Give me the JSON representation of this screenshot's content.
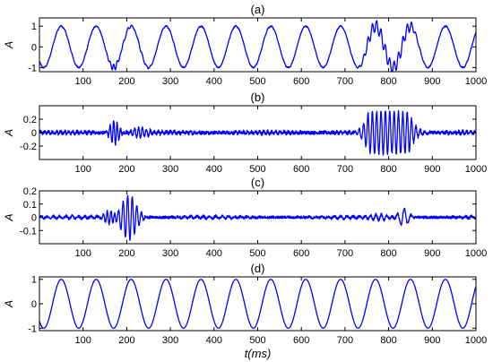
{
  "chart_data": [
    {
      "type": "line",
      "title": "(a)",
      "ylabel": "A",
      "xlim": [
        0,
        1000
      ],
      "ylim": [
        -1.2,
        1.4
      ],
      "xticks": [
        100,
        200,
        300,
        400,
        500,
        600,
        700,
        800,
        900,
        1000
      ],
      "yticks": [
        -1,
        0,
        1
      ],
      "series": [
        {
          "signal": "sine-period-80ms-amplitude-1-plus-noise-bursts",
          "color": "#0000ff"
        }
      ]
    },
    {
      "type": "line",
      "title": "(b)",
      "ylabel": "A",
      "xlim": [
        0,
        1000
      ],
      "ylim": [
        -0.4,
        0.4
      ],
      "xticks": [
        100,
        200,
        300,
        400,
        500,
        600,
        700,
        800,
        900,
        1000
      ],
      "yticks": [
        -0.2,
        0,
        0.2
      ],
      "series": [
        {
          "signal": "noise-with-bursts-near-180ms-and-800ms",
          "color": "#0000ff"
        }
      ]
    },
    {
      "type": "line",
      "title": "(c)",
      "ylabel": "A",
      "xlim": [
        0,
        1000
      ],
      "ylim": [
        -0.2,
        0.2
      ],
      "xticks": [
        100,
        200,
        300,
        400,
        500,
        600,
        700,
        800,
        900,
        1000
      ],
      "yticks": [
        -0.1,
        0,
        0.1,
        0.2
      ],
      "series": [
        {
          "signal": "residual-with-burst-near-200ms-and-small-wiggles-near-800ms",
          "color": "#0000ff"
        }
      ]
    },
    {
      "type": "line",
      "title": "(d)",
      "ylabel": "A",
      "xlabel": "t(ms)",
      "xlim": [
        0,
        1000
      ],
      "ylim": [
        -1.1,
        1.1
      ],
      "xticks": [
        100,
        200,
        300,
        400,
        500,
        600,
        700,
        800,
        900,
        1000
      ],
      "yticks": [
        -1,
        0,
        1
      ],
      "series": [
        {
          "signal": "pure-sine-period-80ms-amplitude-1",
          "color": "#0000ff"
        }
      ]
    }
  ]
}
